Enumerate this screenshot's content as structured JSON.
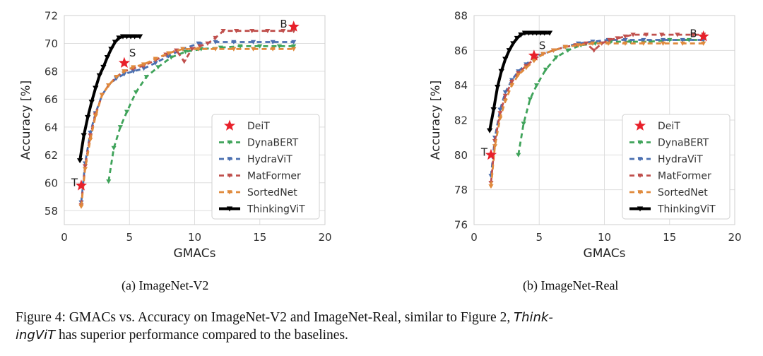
{
  "colors": {
    "DeiT": "#e8202a",
    "DynaBERT": "#3fa35a",
    "HydraViT": "#4a6fb0",
    "MatFormer": "#c0504d",
    "SortedNet": "#e08a3c",
    "ThinkingViT": "#000000"
  },
  "chart_data": [
    {
      "type": "line",
      "subcaption": "(a) ImageNet-V2",
      "xlabel": "GMACs",
      "ylabel": "Accuracy [%]",
      "xlim": [
        0,
        20
      ],
      "ylim": [
        57,
        72
      ],
      "xticks": [
        0,
        5,
        10,
        15,
        20
      ],
      "yticks": [
        58,
        60,
        62,
        64,
        66,
        68,
        70,
        72
      ],
      "grid": true,
      "legend_position": "lower-right",
      "legend": [
        "DeiT",
        "DynaBERT",
        "HydraViT",
        "MatFormer",
        "SortedNet",
        "ThinkingViT"
      ],
      "deit_points": [
        {
          "label": "T",
          "x": 1.3,
          "y": 59.8
        },
        {
          "label": "S",
          "x": 4.6,
          "y": 68.6
        },
        {
          "label": "B",
          "x": 17.6,
          "y": 71.2
        }
      ],
      "series": [
        {
          "name": "DynaBERT",
          "style": "dashed",
          "x": [
            3.4,
            3.8,
            4.3,
            4.8,
            5.5,
            6.3,
            7.2,
            8.2,
            9.3,
            10.5,
            12.0,
            13.5,
            15.0,
            16.5,
            17.6
          ],
          "y": [
            60.1,
            62.5,
            64.0,
            65.1,
            66.5,
            67.6,
            68.3,
            69.0,
            69.4,
            69.6,
            69.7,
            69.8,
            69.8,
            69.8,
            69.8
          ]
        },
        {
          "name": "HydraViT",
          "style": "dashed",
          "x": [
            1.3,
            1.6,
            2.0,
            2.4,
            2.9,
            3.4,
            4.0,
            4.6,
            5.3,
            6.1,
            7.0,
            8.0,
            9.1,
            10.3,
            11.6,
            13.0,
            14.5,
            16.0,
            17.6
          ],
          "y": [
            58.6,
            61.4,
            63.6,
            65.0,
            66.3,
            67.0,
            67.5,
            67.8,
            68.0,
            68.2,
            68.6,
            69.1,
            69.6,
            70.0,
            70.1,
            70.1,
            70.1,
            70.1,
            70.1
          ]
        },
        {
          "name": "MatFormer",
          "style": "dashed",
          "x": [
            1.3,
            1.6,
            2.0,
            2.4,
            2.9,
            3.4,
            4.0,
            4.6,
            5.3,
            6.1,
            7.0,
            7.8,
            8.6,
            9.2,
            9.8,
            10.4,
            11.0,
            11.6,
            12.2,
            13.2,
            14.4,
            15.6,
            16.8,
            17.6
          ],
          "y": [
            58.4,
            61.2,
            63.4,
            64.9,
            66.3,
            67.0,
            67.6,
            68.0,
            68.2,
            68.4,
            68.8,
            69.2,
            69.5,
            68.7,
            69.6,
            69.8,
            70.0,
            70.4,
            70.9,
            70.9,
            70.9,
            70.9,
            70.9,
            70.9
          ]
        },
        {
          "name": "SortedNet",
          "style": "dashed",
          "x": [
            1.3,
            1.6,
            2.0,
            2.4,
            2.9,
            3.4,
            4.0,
            4.6,
            5.3,
            6.1,
            7.0,
            8.0,
            9.1,
            10.3,
            11.6,
            13.0,
            14.5,
            16.0,
            17.6
          ],
          "y": [
            58.3,
            61.0,
            63.1,
            64.8,
            66.3,
            67.0,
            67.6,
            68.0,
            68.3,
            68.5,
            68.9,
            69.3,
            69.6,
            69.6,
            69.6,
            69.6,
            69.6,
            69.6,
            69.6
          ]
        },
        {
          "name": "ThinkingViT",
          "style": "solid",
          "x": [
            1.2,
            1.5,
            1.8,
            2.1,
            2.4,
            2.7,
            3.0,
            3.3,
            3.6,
            3.9,
            4.2,
            4.5,
            4.8,
            5.1,
            5.4,
            5.8
          ],
          "y": [
            61.6,
            63.4,
            64.7,
            65.8,
            66.8,
            67.7,
            68.3,
            69.0,
            69.6,
            70.1,
            70.4,
            70.5,
            70.5,
            70.5,
            70.5,
            70.5
          ]
        }
      ]
    },
    {
      "type": "line",
      "subcaption": "(b) ImageNet-Real",
      "xlabel": "GMACs",
      "ylabel": "Accuracy [%]",
      "xlim": [
        0,
        20
      ],
      "ylim": [
        76,
        88
      ],
      "xticks": [
        0,
        5,
        10,
        15,
        20
      ],
      "yticks": [
        76,
        78,
        80,
        82,
        84,
        86,
        88
      ],
      "grid": true,
      "legend_position": "lower-right",
      "legend": [
        "DeiT",
        "DynaBERT",
        "HydraViT",
        "MatFormer",
        "SortedNet",
        "ThinkingViT"
      ],
      "deit_points": [
        {
          "label": "T",
          "x": 1.3,
          "y": 80.0
        },
        {
          "label": "S",
          "x": 4.6,
          "y": 85.7
        },
        {
          "label": "B",
          "x": 17.6,
          "y": 86.8
        }
      ],
      "series": [
        {
          "name": "DynaBERT",
          "style": "dashed",
          "x": [
            3.4,
            3.8,
            4.3,
            4.8,
            5.5,
            6.3,
            7.2,
            8.2,
            9.3,
            10.5,
            12.0,
            13.5,
            15.0,
            16.5,
            17.6
          ],
          "y": [
            80.0,
            81.8,
            83.2,
            84.0,
            84.9,
            85.6,
            86.0,
            86.3,
            86.4,
            86.5,
            86.5,
            86.5,
            86.6,
            86.6,
            86.6
          ]
        },
        {
          "name": "HydraViT",
          "style": "dashed",
          "x": [
            1.3,
            1.6,
            2.0,
            2.4,
            2.9,
            3.4,
            4.0,
            4.6,
            5.3,
            6.1,
            7.0,
            8.0,
            9.1,
            10.3,
            11.6,
            13.0,
            14.5,
            16.0,
            17.6
          ],
          "y": [
            78.8,
            81.0,
            82.6,
            83.6,
            84.3,
            84.8,
            85.2,
            85.6,
            85.8,
            86.0,
            86.2,
            86.4,
            86.5,
            86.6,
            86.6,
            86.6,
            86.6,
            86.6,
            86.6
          ]
        },
        {
          "name": "MatFormer",
          "style": "dashed",
          "x": [
            1.3,
            1.6,
            2.0,
            2.4,
            2.9,
            3.4,
            4.0,
            4.6,
            5.3,
            6.1,
            7.0,
            7.8,
            8.6,
            9.2,
            9.8,
            10.4,
            11.0,
            11.6,
            12.2,
            13.2,
            14.4,
            15.6,
            16.8,
            17.6
          ],
          "y": [
            78.4,
            80.8,
            82.4,
            83.4,
            84.2,
            84.7,
            85.1,
            85.5,
            85.8,
            86.0,
            86.2,
            86.3,
            86.4,
            86.0,
            86.4,
            86.6,
            86.7,
            86.8,
            86.9,
            86.9,
            86.9,
            86.9,
            86.9,
            86.9
          ]
        },
        {
          "name": "SortedNet",
          "style": "dashed",
          "x": [
            1.3,
            1.6,
            2.0,
            2.4,
            2.9,
            3.4,
            4.0,
            4.6,
            5.3,
            6.1,
            7.0,
            8.0,
            9.1,
            10.3,
            11.6,
            13.0,
            14.5,
            16.0,
            17.6
          ],
          "y": [
            78.2,
            80.5,
            82.1,
            83.1,
            84.0,
            84.6,
            85.0,
            85.4,
            85.8,
            86.0,
            86.2,
            86.3,
            86.4,
            86.4,
            86.4,
            86.4,
            86.4,
            86.4,
            86.4
          ]
        },
        {
          "name": "ThinkingViT",
          "style": "solid",
          "x": [
            1.2,
            1.5,
            1.8,
            2.1,
            2.4,
            2.7,
            3.0,
            3.3,
            3.6,
            3.9,
            4.2,
            4.5,
            4.8,
            5.1,
            5.4,
            5.8
          ],
          "y": [
            81.4,
            82.6,
            83.9,
            84.8,
            85.5,
            86.0,
            86.4,
            86.7,
            86.9,
            87.0,
            87.0,
            87.0,
            87.0,
            87.0,
            87.0,
            87.0
          ]
        }
      ]
    }
  ],
  "caption": {
    "prefix": "Figure 4: GMACs vs. Accuracy on ImageNet-V2 and ImageNet-Real, similar to Figure 2, ",
    "emph1": "Think-",
    "emph2": "ingViT",
    "suffix": " has superior performance compared to the baselines."
  }
}
